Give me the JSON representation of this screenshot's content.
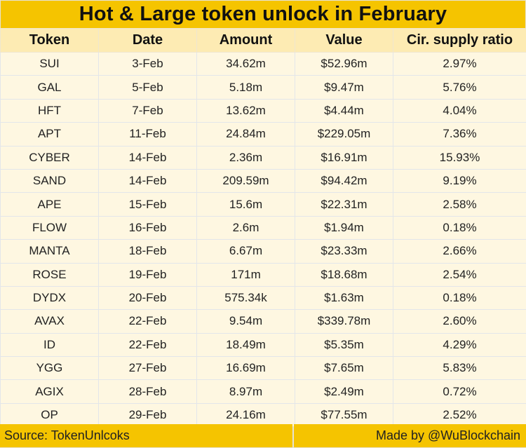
{
  "title": "Hot & Large token unlock in February",
  "columns": [
    "Token",
    "Date",
    "Amount",
    "Value",
    "Cir. supply ratio"
  ],
  "rows": [
    [
      "SUI",
      "3-Feb",
      "34.62m",
      "$52.96m",
      "2.97%"
    ],
    [
      "GAL",
      "5-Feb",
      "5.18m",
      "$9.47m",
      "5.76%"
    ],
    [
      "HFT",
      "7-Feb",
      "13.62m",
      "$4.44m",
      "4.04%"
    ],
    [
      "APT",
      "11-Feb",
      "24.84m",
      "$229.05m",
      "7.36%"
    ],
    [
      "CYBER",
      "14-Feb",
      "2.36m",
      "$16.91m",
      "15.93%"
    ],
    [
      "SAND",
      "14-Feb",
      "209.59m",
      "$94.42m",
      "9.19%"
    ],
    [
      "APE",
      "15-Feb",
      "15.6m",
      "$22.31m",
      "2.58%"
    ],
    [
      "FLOW",
      "16-Feb",
      "2.6m",
      "$1.94m",
      "0.18%"
    ],
    [
      "MANTA",
      "18-Feb",
      "6.67m",
      "$23.33m",
      "2.66%"
    ],
    [
      "ROSE",
      "19-Feb",
      "171m",
      "$18.68m",
      "2.54%"
    ],
    [
      "DYDX",
      "20-Feb",
      "575.34k",
      "$1.63m",
      "0.18%"
    ],
    [
      "AVAX",
      "22-Feb",
      "9.54m",
      "$339.78m",
      "2.60%"
    ],
    [
      "ID",
      "22-Feb",
      "18.49m",
      "$5.35m",
      "4.29%"
    ],
    [
      "YGG",
      "27-Feb",
      "16.69m",
      "$7.65m",
      "5.83%"
    ],
    [
      "AGIX",
      "28-Feb",
      "8.97m",
      "$2.49m",
      "0.72%"
    ],
    [
      "OP",
      "29-Feb",
      "24.16m",
      "$77.55m",
      "2.52%"
    ]
  ],
  "footer": {
    "source": "Source: TokenUnlcoks",
    "credit": "Made by @WuBlockchain"
  },
  "colors": {
    "accent_yellow": "#f5c400",
    "header_bg": "#fdebb3",
    "cell_bg": "#fef7e1"
  }
}
